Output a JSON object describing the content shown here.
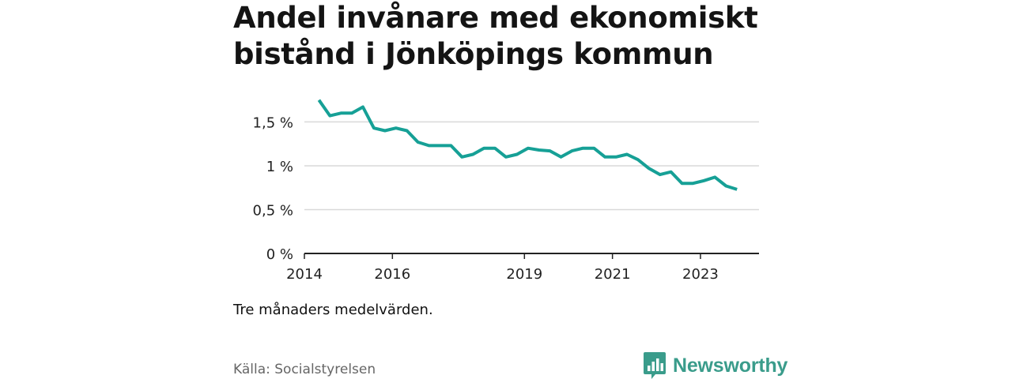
{
  "title": "Andel invånare med ekonomiskt bistånd i Jönköpings kommun",
  "note": "Tre månaders medelvärden.",
  "source": "Källa: Socialstyrelsen",
  "brand": {
    "name": "Newsworthy",
    "icon": "newsworthy-logo-icon",
    "color": "#3a9c8b"
  },
  "colors": {
    "line": "#16a096",
    "grid": "#d9d9d9",
    "axis": "#222222"
  },
  "chart_data": {
    "type": "line",
    "title": "Andel invånare med ekonomiskt bistånd i Jönköpings kommun",
    "xlabel": "",
    "ylabel": "",
    "ylim": [
      0,
      1.9
    ],
    "xlim": [
      2014.0,
      2024.33
    ],
    "grid": true,
    "y_ticks": [
      {
        "value": 0,
        "label": "0 %"
      },
      {
        "value": 0.5,
        "label": "0,5 %"
      },
      {
        "value": 1,
        "label": "1 %"
      },
      {
        "value": 1.5,
        "label": "1,5 %"
      }
    ],
    "x_ticks": [
      {
        "value": 2014,
        "label": "2014"
      },
      {
        "value": 2016,
        "label": "2016"
      },
      {
        "value": 2019,
        "label": "2019"
      },
      {
        "value": 2021,
        "label": "2021"
      },
      {
        "value": 2023,
        "label": "2023"
      }
    ],
    "series": [
      {
        "name": "Andel invånare med ekonomiskt bistånd",
        "x": [
          2014.33,
          2014.58,
          2014.83,
          2015.08,
          2015.33,
          2015.58,
          2015.83,
          2016.08,
          2016.33,
          2016.58,
          2016.83,
          2017.08,
          2017.33,
          2017.58,
          2017.83,
          2018.08,
          2018.33,
          2018.58,
          2018.83,
          2019.08,
          2019.33,
          2019.58,
          2019.83,
          2020.08,
          2020.33,
          2020.58,
          2020.83,
          2021.08,
          2021.33,
          2021.58,
          2021.83,
          2022.08,
          2022.33,
          2022.58,
          2022.83,
          2023.08,
          2023.33,
          2023.58,
          2023.83
        ],
        "values": [
          1.75,
          1.57,
          1.6,
          1.6,
          1.67,
          1.43,
          1.4,
          1.43,
          1.4,
          1.27,
          1.23,
          1.23,
          1.23,
          1.1,
          1.13,
          1.2,
          1.2,
          1.1,
          1.13,
          1.2,
          1.18,
          1.17,
          1.1,
          1.17,
          1.2,
          1.2,
          1.1,
          1.1,
          1.13,
          1.07,
          0.97,
          0.9,
          0.93,
          0.8,
          0.8,
          0.83,
          0.87,
          0.77,
          0.73
        ]
      }
    ]
  }
}
